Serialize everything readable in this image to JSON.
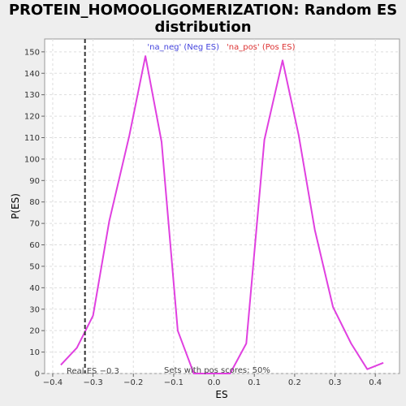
{
  "chart_data": {
    "type": "line",
    "title_line1": "PROTEIN_HOMOOLIGOMERIZATION: Random ES",
    "title_line2": "distribution",
    "xlabel": "ES",
    "ylabel": "P(ES)",
    "xlim": [
      -0.42,
      0.46
    ],
    "ylim": [
      0,
      156
    ],
    "xticks": [
      -0.4,
      -0.3,
      -0.2,
      -0.1,
      0.0,
      0.1,
      0.2,
      0.3,
      0.4
    ],
    "xtick_labels": [
      "−0.4",
      "−0.3",
      "−0.2",
      "−0.1",
      "0.0",
      "0.1",
      "0.2",
      "0.3",
      "0.4"
    ],
    "yticks": [
      0,
      10,
      20,
      30,
      40,
      50,
      60,
      70,
      80,
      90,
      100,
      110,
      120,
      130,
      140,
      150
    ],
    "grid": true,
    "legend": {
      "placement": "top-center",
      "neg_label": "'na_neg' (Neg ES)",
      "pos_label": "'na_pos' (Pos ES)"
    },
    "series": [
      {
        "color": "#e040e0",
        "x": [
          -0.38,
          -0.34,
          -0.3,
          -0.26,
          -0.21,
          -0.17,
          -0.13,
          -0.09,
          -0.05,
          -0.01,
          0.04,
          0.08,
          0.125,
          0.17,
          0.21,
          0.25,
          0.295,
          0.34,
          0.38,
          0.42
        ],
        "y": [
          4,
          12,
          27,
          71,
          111,
          148,
          108,
          20,
          0,
          0,
          0,
          14,
          109,
          146,
          111,
          67,
          31,
          14,
          2,
          5
        ]
      }
    ],
    "real_es": {
      "x": -0.32,
      "color": "#333333",
      "label": "Real ES −0.3"
    },
    "annotation": "Sets with pos scores: 50%"
  }
}
